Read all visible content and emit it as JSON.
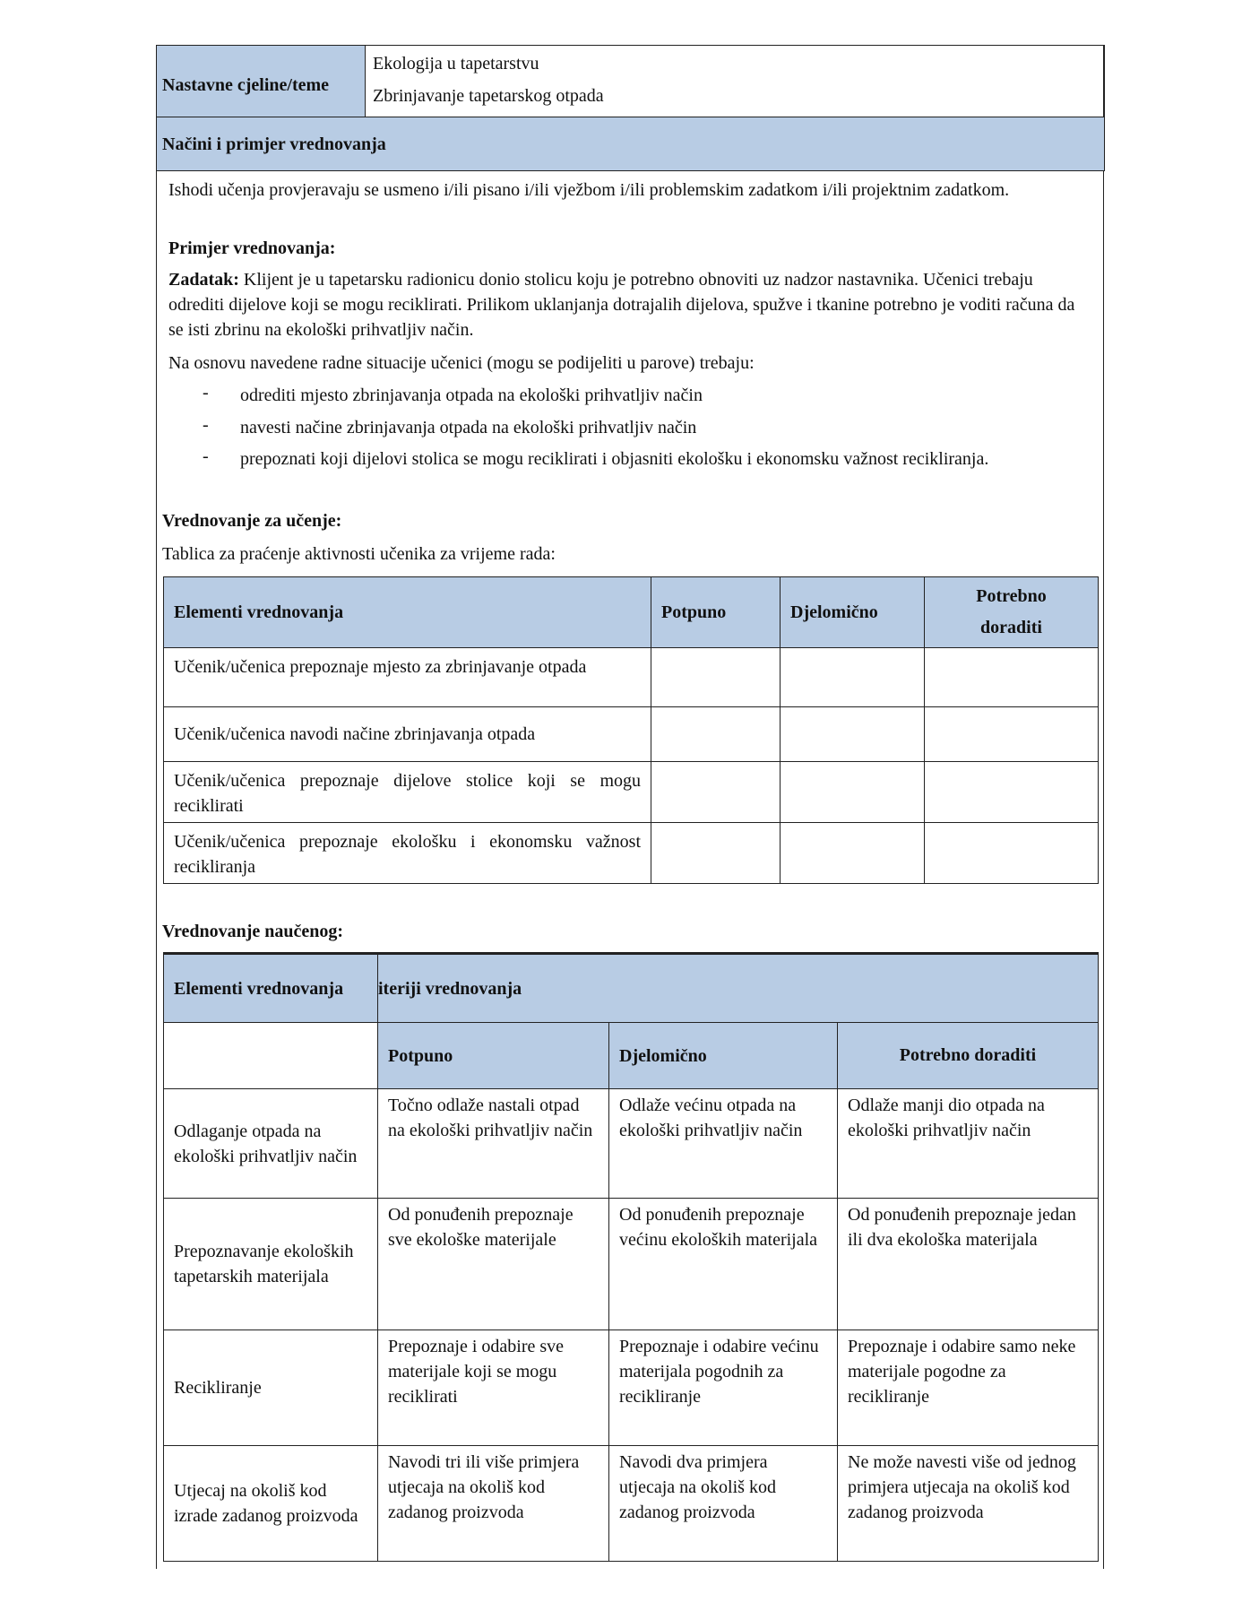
{
  "header": {
    "label": "Nastavne cjeline/teme",
    "topics": [
      "Ekologija u tapetarstvu",
      "Zbrinjavanje tapetarskog otpada"
    ],
    "section_title": "Načini i primjer vrednovanja"
  },
  "content": {
    "intro": "Ishodi učenja provjeravaju se usmeno i/ili pisano i/ili vježbom i/ili problemskim zadatkom i/ili projektnim zadatkom.",
    "example_heading": "Primjer vrednovanja:",
    "task_label": "Zadatak:",
    "task_text": " Klijent je u tapetarsku radionicu donio stolicu koju je potrebno obnoviti uz nadzor nastavnika. Učenici trebaju odrediti dijelove koji se mogu reciklirati. Prilikom uklanjanja dotrajalih dijelova, spužve i tkanine potrebno je voditi računa da se isti zbrinu na ekološki prihvatljiv način.",
    "situation": "Na osnovu navedene radne situacije učenici (mogu se podijeliti u parove) trebaju:",
    "bullet_marker": "-",
    "bullets": [
      "odrediti mjesto zbrinjavanja otpada na ekološki prihvatljiv način",
      "navesti načine zbrinjavanja otpada na ekološki prihvatljiv način",
      "prepoznati koji dijelovi stolica se mogu reciklirati i objasniti ekološku i ekonomsku važnost recikliranja."
    ],
    "learning_eval_heading": "Vrednovanje za učenje:",
    "table1_caption": "Tablica za praćenje aktivnosti učenika za vrijeme rada:",
    "learned_eval_heading": "Vrednovanje naučenog:"
  },
  "table1": {
    "headers": [
      "Elementi vrednovanja",
      "Potpuno",
      "Djelomično",
      "Potrebno doraditi"
    ],
    "rows": [
      "Učenik/učenica prepoznaje mjesto za zbrinjavanje otpada",
      "Učenik/učenica navodi načine zbrinjavanja otpada",
      "Učenik/učenica prepoznaje dijelove stolice koji se mogu reciklirati",
      "Učenik/učenica prepoznaje ekološku i ekonomsku važnost recikliranja"
    ]
  },
  "table2": {
    "header_left": "Elementi vrednovanja",
    "header_right": "iteriji vrednovanja",
    "subheaders": [
      "Potpuno",
      "Djelomično",
      "Potrebno doraditi"
    ],
    "rows": [
      {
        "element": "Odlaganje otpada na ekološki prihvatljiv način",
        "cells": [
          "Točno odlaže nastali otpad na ekološki prihvatljiv način",
          "Odlaže većinu otpada na ekološki prihvatljiv način",
          "Odlaže manji dio otpada na ekološki prihvatljiv način"
        ]
      },
      {
        "element": "Prepoznavanje ekoloških tapetarskih materijala",
        "cells": [
          "Od ponuđenih prepoznaje sve ekološke materijale",
          "Od ponuđenih prepoznaje većinu ekoloških materijala",
          "Od ponuđenih prepoznaje jedan ili dva ekološka materijala"
        ]
      },
      {
        "element": "Recikliranje",
        "cells": [
          "Prepoznaje i odabire sve materijale koji se mogu reciklirati",
          "Prepoznaje i odabire većinu materijala pogodnih za recikliranje",
          "Prepoznaje i odabire samo neke materijale pogodne za recikliranje"
        ]
      },
      {
        "element": "Utjecaj na okoliš kod izrade zadanog proizvoda",
        "cells": [
          "Navodi tri ili više primjera utjecaja na okoliš kod zadanog proizvoda",
          "Navodi dva primjera utjecaja na okoliš kod zadanog proizvoda",
          "Ne može navesti više od jednog primjera utjecaja na okoliš kod zadanog proizvoda"
        ]
      }
    ]
  },
  "colors": {
    "header_fill": "#b8cce4",
    "border": "#222222"
  }
}
